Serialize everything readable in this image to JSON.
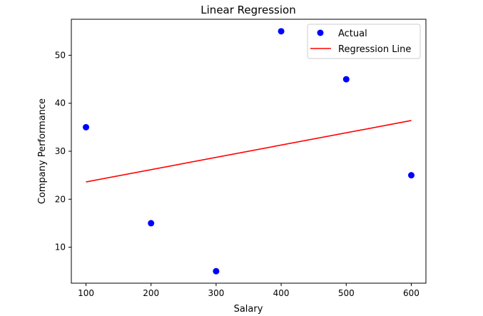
{
  "chart_data": {
    "type": "scatter",
    "title": "Linear Regression",
    "xlabel": "Salary",
    "ylabel": "Company Performance",
    "xlim": [
      77.5,
      622.5
    ],
    "ylim": [
      2.5,
      57.5
    ],
    "xticks": [
      100,
      200,
      300,
      400,
      500,
      600
    ],
    "yticks": [
      10,
      20,
      30,
      40,
      50
    ],
    "grid": false,
    "legend_position": "upper right",
    "series": [
      {
        "name": "Actual",
        "kind": "scatter",
        "color": "#0000ff",
        "points": [
          {
            "x": 100,
            "y": 35
          },
          {
            "x": 200,
            "y": 15
          },
          {
            "x": 300,
            "y": 5
          },
          {
            "x": 400,
            "y": 55
          },
          {
            "x": 500,
            "y": 45
          },
          {
            "x": 600,
            "y": 25
          }
        ]
      },
      {
        "name": "Regression Line",
        "kind": "line",
        "color": "#ff0000",
        "points": [
          {
            "x": 100,
            "y": 23.6
          },
          {
            "x": 600,
            "y": 36.4
          }
        ]
      }
    ]
  }
}
